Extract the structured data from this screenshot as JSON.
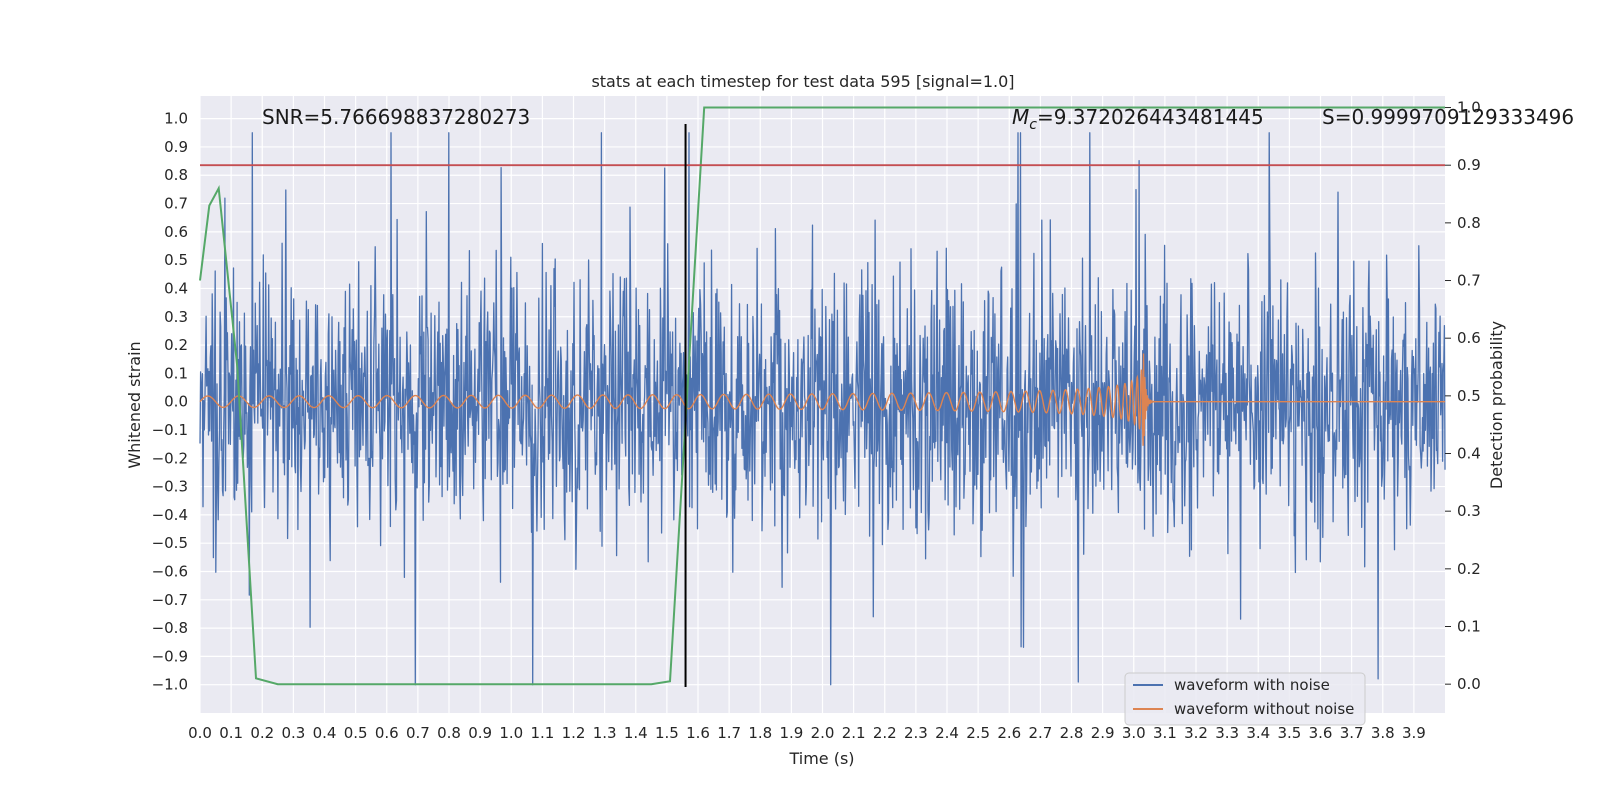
{
  "chart_data": {
    "type": "line",
    "title": "stats at each timestep for test data 595 [signal=1.0]",
    "xlabel": "Time (s)",
    "ylabel": "Whitened strain",
    "ylabel_right": "Detection probability",
    "xlim": [
      0.0,
      4.0
    ],
    "ylim": [
      -1.1,
      1.08
    ],
    "ylim_right": [
      -0.05,
      1.02
    ],
    "xticks": [
      "0.0",
      "0.1",
      "0.2",
      "0.3",
      "0.4",
      "0.5",
      "0.6",
      "0.7",
      "0.8",
      "0.9",
      "1.0",
      "1.1",
      "1.2",
      "1.3",
      "1.4",
      "1.5",
      "1.6",
      "1.7",
      "1.8",
      "1.9",
      "2.0",
      "2.1",
      "2.2",
      "2.3",
      "2.4",
      "2.5",
      "2.6",
      "2.7",
      "2.8",
      "2.9",
      "3.0",
      "3.1",
      "3.2",
      "3.3",
      "3.4",
      "3.5",
      "3.6",
      "3.7",
      "3.8",
      "3.9"
    ],
    "yticks_left": [
      "1.0",
      "0.9",
      "0.8",
      "0.7",
      "0.6",
      "0.5",
      "0.4",
      "0.3",
      "0.2",
      "0.1",
      "0.0",
      "−0.1",
      "−0.2",
      "−0.3",
      "−0.4",
      "−0.5",
      "−0.6",
      "−0.7",
      "−0.8",
      "−0.9",
      "−1.0"
    ],
    "yticks_right": [
      "1.0",
      "0.9",
      "0.8",
      "0.7",
      "0.6",
      "0.5",
      "0.4",
      "0.3",
      "0.2",
      "0.1",
      "0.0"
    ],
    "annotations": {
      "snr": "SNR=5.766698837280273",
      "mc_symbol": "M",
      "mc_subscript": "c",
      "mc_value": "=9.372026443481445",
      "s": "S=0.9999709129333496"
    },
    "series": [
      {
        "name": "waveform with noise",
        "color": "#4c72b0",
        "kind": "noise",
        "amplitude": 0.95,
        "samples": 2048
      },
      {
        "name": "waveform without noise",
        "color": "#dd8452",
        "kind": "chirp",
        "merger_time": 3.03,
        "base_amplitude": 0.02,
        "peak_amplitude": 0.26
      },
      {
        "name": "detection probability",
        "color": "#55a868",
        "axis": "right",
        "x": [
          0.0,
          0.03,
          0.06,
          0.12,
          0.18,
          0.25,
          0.5,
          1.0,
          1.45,
          1.51,
          1.62,
          2.0,
          3.0,
          4.0
        ],
        "y": [
          0.7,
          0.83,
          0.86,
          0.55,
          0.01,
          0.0,
          0.0,
          0.0,
          0.0,
          0.005,
          1.0,
          1.0,
          1.0,
          1.0
        ]
      }
    ],
    "threshold_line": {
      "axis": "right",
      "value": 0.9,
      "color": "#c44e52"
    },
    "vertical_line": {
      "x": 1.56,
      "color": "#000000"
    },
    "legend": {
      "location": "lower-right",
      "entries": [
        "waveform with noise",
        "waveform without noise"
      ]
    }
  }
}
